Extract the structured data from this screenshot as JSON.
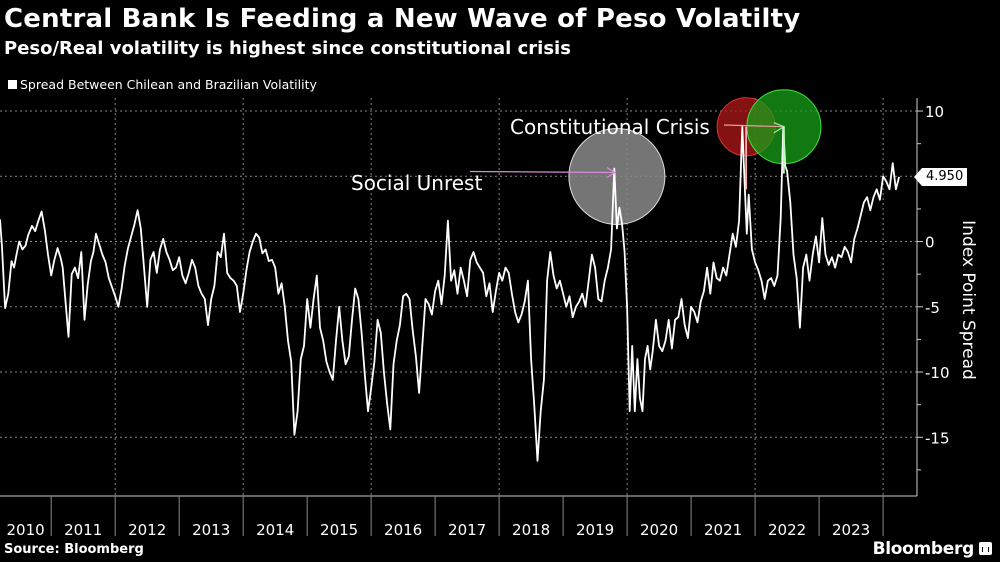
{
  "header": {
    "title": "Central Bank Is Feeding a New Wave of Peso Volatilty",
    "subtitle": "Peso/Real volatility is highest since constitutional crisis"
  },
  "footer": {
    "source": "Source: Bloomberg",
    "brand": "Bloomberg"
  },
  "chart_data": {
    "type": "line",
    "title": "Central Bank Is Feeding a New Wave of Peso Volatilty",
    "subtitle": "Peso/Real volatility is highest since constitutional crisis",
    "xlabel": "",
    "ylabel": "Index Point Spread",
    "ylim": [
      -19.5,
      11
    ],
    "xlim": [
      2010.2,
      2024.53
    ],
    "yticks": [
      10,
      5,
      0,
      -5,
      -10,
      -15
    ],
    "ytick_labels": [
      "10",
      "",
      "0",
      "-5",
      "-10",
      "-15"
    ],
    "xtick_labels": [
      "2010",
      "2011",
      "2012",
      "2013",
      "2014",
      "2015",
      "2016",
      "2017",
      "2018",
      "2019",
      "2020",
      "2021",
      "2022",
      "2023"
    ],
    "grid": true,
    "legend": {
      "position": "top-left",
      "entries": [
        "Spread Between Chilean and Brazilian Volatility"
      ]
    },
    "last_value_label": "4.950",
    "annotations": [
      {
        "text": "Social Unrest",
        "x": 2019.84,
        "y": 5.6,
        "marker_color": "#8a8a8a"
      },
      {
        "text": "Constitutional Crisis",
        "x": 2021.86,
        "y": 8.8,
        "marker_color": "#b01818"
      },
      {
        "text": "",
        "x": 2022.45,
        "y": 8.8,
        "marker_color": "#18a018"
      }
    ],
    "series": [
      {
        "name": "Spread Between Chilean and Brazilian Volatility",
        "color": "#ffffff",
        "x": [
          2010.2,
          2010.23,
          2010.28,
          2010.33,
          2010.38,
          2010.42,
          2010.45,
          2010.5,
          2010.55,
          2010.6,
          2010.64,
          2010.7,
          2010.75,
          2010.8,
          2010.85,
          2010.9,
          2010.95,
          2011.0,
          2011.05,
          2011.1,
          2011.15,
          2011.18,
          2011.22,
          2011.27,
          2011.32,
          2011.37,
          2011.42,
          2011.47,
          2011.52,
          2011.57,
          2011.62,
          2011.66,
          2011.7,
          2011.75,
          2011.8,
          2011.85,
          2011.9,
          2011.95,
          2012.0,
          2012.05,
          2012.1,
          2012.15,
          2012.2,
          2012.25,
          2012.3,
          2012.35,
          2012.4,
          2012.45,
          2012.5,
          2012.55,
          2012.6,
          2012.65,
          2012.7,
          2012.75,
          2012.8,
          2012.85,
          2012.9,
          2012.95,
          2013.0,
          2013.05,
          2013.1,
          2013.15,
          2013.2,
          2013.25,
          2013.3,
          2013.35,
          2013.4,
          2013.45,
          2013.5,
          2013.55,
          2013.6,
          2013.65,
          2013.7,
          2013.75,
          2013.8,
          2013.85,
          2013.9,
          2013.95,
          2014.0,
          2014.05,
          2014.1,
          2014.15,
          2014.2,
          2014.25,
          2014.3,
          2014.35,
          2014.4,
          2014.45,
          2014.5,
          2014.55,
          2014.6,
          2014.65,
          2014.7,
          2014.75,
          2014.8,
          2014.85,
          2014.9,
          2014.95,
          2015.0,
          2015.05,
          2015.1,
          2015.15,
          2015.2,
          2015.25,
          2015.3,
          2015.35,
          2015.4,
          2015.45,
          2015.5,
          2015.55,
          2015.6,
          2015.65,
          2015.7,
          2015.75,
          2015.8,
          2015.85,
          2015.9,
          2015.95,
          2016.0,
          2016.05,
          2016.1,
          2016.15,
          2016.2,
          2016.25,
          2016.3,
          2016.35,
          2016.4,
          2016.45,
          2016.5,
          2016.55,
          2016.6,
          2016.65,
          2016.7,
          2016.75,
          2016.8,
          2016.85,
          2016.9,
          2016.95,
          2017.0,
          2017.05,
          2017.1,
          2017.15,
          2017.2,
          2017.25,
          2017.3,
          2017.35,
          2017.4,
          2017.45,
          2017.5,
          2017.55,
          2017.6,
          2017.65,
          2017.7,
          2017.75,
          2017.8,
          2017.85,
          2017.9,
          2017.95,
          2018.0,
          2018.05,
          2018.1,
          2018.15,
          2018.2,
          2018.25,
          2018.3,
          2018.35,
          2018.4,
          2018.45,
          2018.5,
          2018.55,
          2018.6,
          2018.65,
          2018.7,
          2018.75,
          2018.8,
          2018.85,
          2018.9,
          2018.95,
          2019.0,
          2019.05,
          2019.1,
          2019.15,
          2019.2,
          2019.25,
          2019.3,
          2019.35,
          2019.4,
          2019.45,
          2019.5,
          2019.55,
          2019.6,
          2019.65,
          2019.7,
          2019.75,
          2019.8,
          2019.84,
          2019.88,
          2019.92,
          2019.96,
          2020.0,
          2020.04,
          2020.08,
          2020.12,
          2020.16,
          2020.2,
          2020.24,
          2020.28,
          2020.32,
          2020.36,
          2020.4,
          2020.45,
          2020.5,
          2020.55,
          2020.6,
          2020.65,
          2020.7,
          2020.75,
          2020.8,
          2020.85,
          2020.9,
          2020.95,
          2021.0,
          2021.05,
          2021.1,
          2021.15,
          2021.2,
          2021.25,
          2021.3,
          2021.35,
          2021.4,
          2021.45,
          2021.5,
          2021.55,
          2021.6,
          2021.65,
          2021.7,
          2021.75,
          2021.8,
          2021.84,
          2021.87,
          2021.9,
          2021.95,
          2022.0,
          2022.05,
          2022.1,
          2022.15,
          2022.2,
          2022.25,
          2022.3,
          2022.35,
          2022.4,
          2022.44,
          2022.47,
          2022.5,
          2022.55,
          2022.6,
          2022.65,
          2022.7,
          2022.75,
          2022.8,
          2022.85,
          2022.9,
          2022.95,
          2023.0,
          2023.05,
          2023.1,
          2023.15,
          2023.2,
          2023.25,
          2023.3,
          2023.35,
          2023.4,
          2023.45,
          2023.5,
          2023.55,
          2023.6,
          2023.65,
          2023.7,
          2023.75,
          2023.8,
          2023.85,
          2023.9,
          2023.95,
          2024.0,
          2024.05,
          2024.1,
          2024.15,
          2024.2,
          2024.25
        ],
        "values": [
          1.7,
          -0.3,
          -5.1,
          -4.0,
          -1.5,
          -2.0,
          -1.2,
          0.0,
          -0.6,
          -0.3,
          0.5,
          1.2,
          0.8,
          1.6,
          2.3,
          0.9,
          -1.0,
          -2.6,
          -1.4,
          -0.5,
          -1.3,
          -2.0,
          -4.4,
          -7.3,
          -2.5,
          -2.0,
          -2.8,
          -0.8,
          -6.0,
          -3.3,
          -1.5,
          -0.8,
          0.6,
          -0.2,
          -1.0,
          -1.6,
          -2.8,
          -3.5,
          -4.2,
          -5.0,
          -3.6,
          -1.8,
          -0.5,
          0.4,
          1.3,
          2.4,
          1.0,
          -2.0,
          -5.0,
          -1.4,
          -0.8,
          -2.4,
          -0.6,
          0.2,
          -0.8,
          -1.4,
          -2.2,
          -2.0,
          -1.2,
          -2.6,
          -3.2,
          -2.4,
          -1.4,
          -2.0,
          -3.4,
          -4.0,
          -4.4,
          -6.4,
          -4.4,
          -3.4,
          -0.8,
          -1.2,
          0.6,
          -2.4,
          -2.8,
          -3.0,
          -3.4,
          -5.4,
          -4.0,
          -2.2,
          -0.8,
          0.0,
          0.6,
          0.3,
          -0.9,
          -0.6,
          -1.5,
          -1.4,
          -2.0,
          -4.0,
          -3.2,
          -5.0,
          -7.6,
          -9.2,
          -14.8,
          -13.0,
          -9.0,
          -8.0,
          -4.4,
          -6.6,
          -4.4,
          -2.6,
          -6.6,
          -7.6,
          -9.2,
          -10.0,
          -10.6,
          -7.6,
          -5.0,
          -7.6,
          -9.4,
          -8.8,
          -6.0,
          -3.6,
          -4.4,
          -7.0,
          -10.2,
          -13.0,
          -11.2,
          -9.2,
          -6.0,
          -7.0,
          -10.0,
          -12.4,
          -14.4,
          -9.4,
          -7.6,
          -6.4,
          -4.2,
          -4.0,
          -4.4,
          -6.8,
          -8.8,
          -11.6,
          -8.0,
          -4.4,
          -4.8,
          -5.6,
          -3.8,
          -3.0,
          -4.8,
          -2.6,
          1.6,
          -3.0,
          -2.2,
          -4.0,
          -2.0,
          -3.0,
          -4.2,
          -1.4,
          -0.8,
          -1.6,
          -2.0,
          -2.4,
          -4.2,
          -3.2,
          -5.4,
          -3.8,
          -2.4,
          -3.0,
          -2.0,
          -2.4,
          -4.0,
          -5.4,
          -6.2,
          -5.6,
          -4.6,
          -3.0,
          -9.0,
          -12.6,
          -16.8,
          -13.0,
          -10.6,
          -3.0,
          -0.8,
          -2.6,
          -3.6,
          -3.0,
          -4.0,
          -5.0,
          -4.2,
          -5.8,
          -5.0,
          -4.6,
          -4.0,
          -5.0,
          -3.0,
          -1.0,
          -2.0,
          -4.4,
          -4.6,
          -3.0,
          -2.0,
          -0.6,
          5.6,
          1.0,
          2.6,
          1.4,
          -0.8,
          -5.0,
          -13.0,
          -8.0,
          -13.0,
          -9.0,
          -12.0,
          -13.0,
          -9.0,
          -8.0,
          -9.8,
          -8.4,
          -6.0,
          -8.0,
          -8.4,
          -7.6,
          -6.0,
          -8.2,
          -6.0,
          -5.8,
          -4.4,
          -6.4,
          -7.4,
          -5.0,
          -5.4,
          -6.2,
          -4.6,
          -3.8,
          -2.0,
          -4.0,
          -1.6,
          -2.8,
          -3.0,
          -2.0,
          -2.6,
          -1.0,
          0.6,
          -0.4,
          1.6,
          8.8,
          4.0,
          0.6,
          3.6,
          -0.6,
          -1.6,
          -2.2,
          -3.0,
          -4.4,
          -3.0,
          -2.8,
          -3.4,
          -2.6,
          1.8,
          8.8,
          5.8,
          5.4,
          3.0,
          -1.0,
          -2.8,
          -6.6,
          -2.0,
          -1.0,
          -3.0,
          -1.0,
          0.4,
          -1.6,
          1.8,
          -1.0,
          -1.8,
          -1.2,
          -2.0,
          -1.0,
          -1.2,
          -0.4,
          -0.8,
          -1.6,
          0.2,
          1.0,
          2.0,
          3.0,
          3.4,
          2.4,
          3.4,
          4.0,
          3.2,
          5.0,
          4.6,
          4.0,
          6.0,
          4.0,
          4.95
        ]
      }
    ]
  }
}
